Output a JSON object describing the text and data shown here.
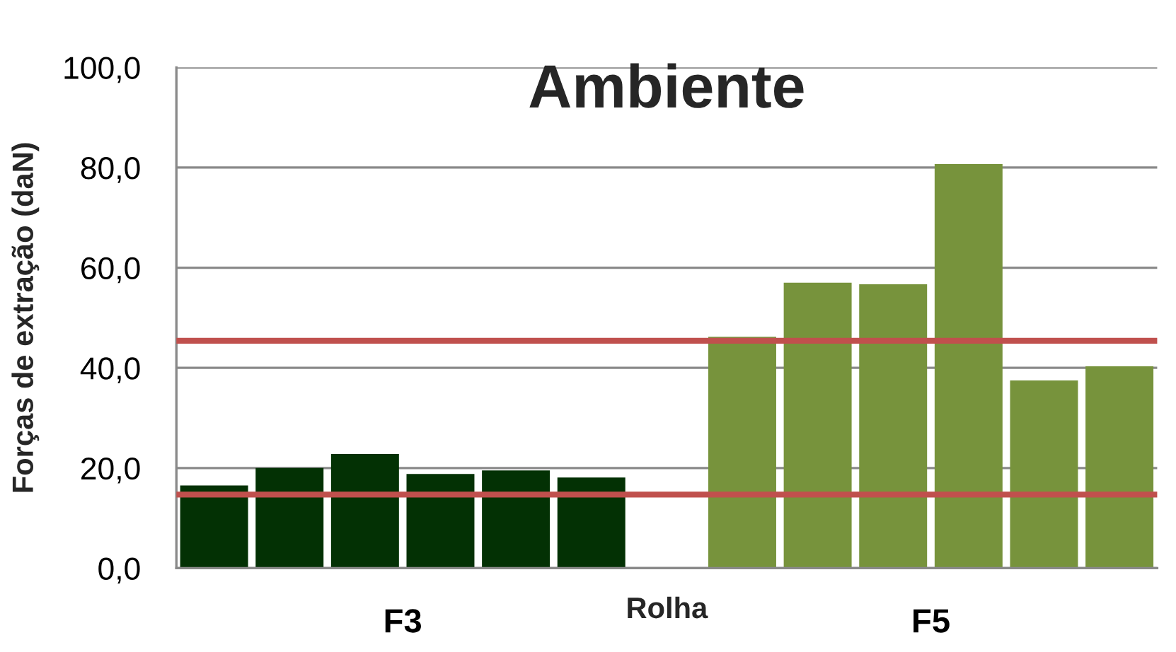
{
  "chart_data": {
    "type": "bar",
    "title": "Ambiente",
    "xlabel": "Rolha",
    "ylabel": "Forças de extração (daN)",
    "categories": [
      null,
      null,
      null,
      null,
      null,
      null,
      null,
      null,
      null,
      null,
      null,
      null,
      null
    ],
    "series": [
      {
        "name": "F3",
        "color": "#033104",
        "values": [
          16.5,
          20.0,
          22.8,
          18.8,
          19.5,
          18.1,
          null,
          null,
          null,
          null,
          null,
          null,
          null
        ]
      },
      {
        "name": "F5",
        "color": "#77933c",
        "values": [
          null,
          null,
          null,
          null,
          null,
          null,
          null,
          46.2,
          57.0,
          56.7,
          80.7,
          37.5,
          40.3
        ]
      }
    ],
    "ylim": [
      0,
      100
    ],
    "yticks": [
      {
        "value": 0,
        "label": "0,0"
      },
      {
        "value": 20,
        "label": "20,0"
      },
      {
        "value": 40,
        "label": "40,0"
      },
      {
        "value": 60,
        "label": "60,0"
      },
      {
        "value": 80,
        "label": "80,0"
      },
      {
        "value": 100,
        "label": "100,0"
      }
    ],
    "grid": "y",
    "ref_lines": [
      {
        "axis": "y",
        "value": 45.4,
        "color": "#c0504d"
      },
      {
        "axis": "y",
        "value": 14.7,
        "color": "#c0504d"
      }
    ]
  }
}
